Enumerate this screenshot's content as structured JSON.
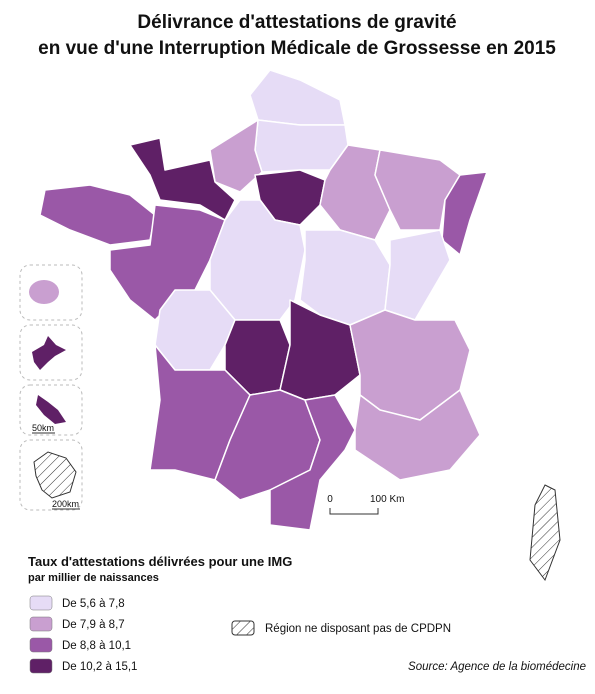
{
  "title": [
    "Délivrance d'attestations de gravité",
    "en vue d'une Interruption Médicale de Grossesse en 2015"
  ],
  "scale": {
    "zero": "0",
    "main": "100 Km",
    "inset_small": "50km",
    "inset_large": "200km"
  },
  "legend": {
    "title": "Taux d'attestations délivrées pour une IMG",
    "subtitle": "par millier de naissances",
    "items": [
      {
        "label": "De 5,6 à 7,8",
        "color": "#e6dcf6"
      },
      {
        "label": "De 7,9 à 8,7",
        "color": "#c99fd0"
      },
      {
        "label": "De 8,8 à 10,1",
        "color": "#9a58a7"
      },
      {
        "label": "De 10,2 à 15,1",
        "color": "#5f2066"
      }
    ],
    "no_data": "Région ne disposant pas de CPDPN"
  },
  "source": "Source: Agence de la biomédecine"
}
